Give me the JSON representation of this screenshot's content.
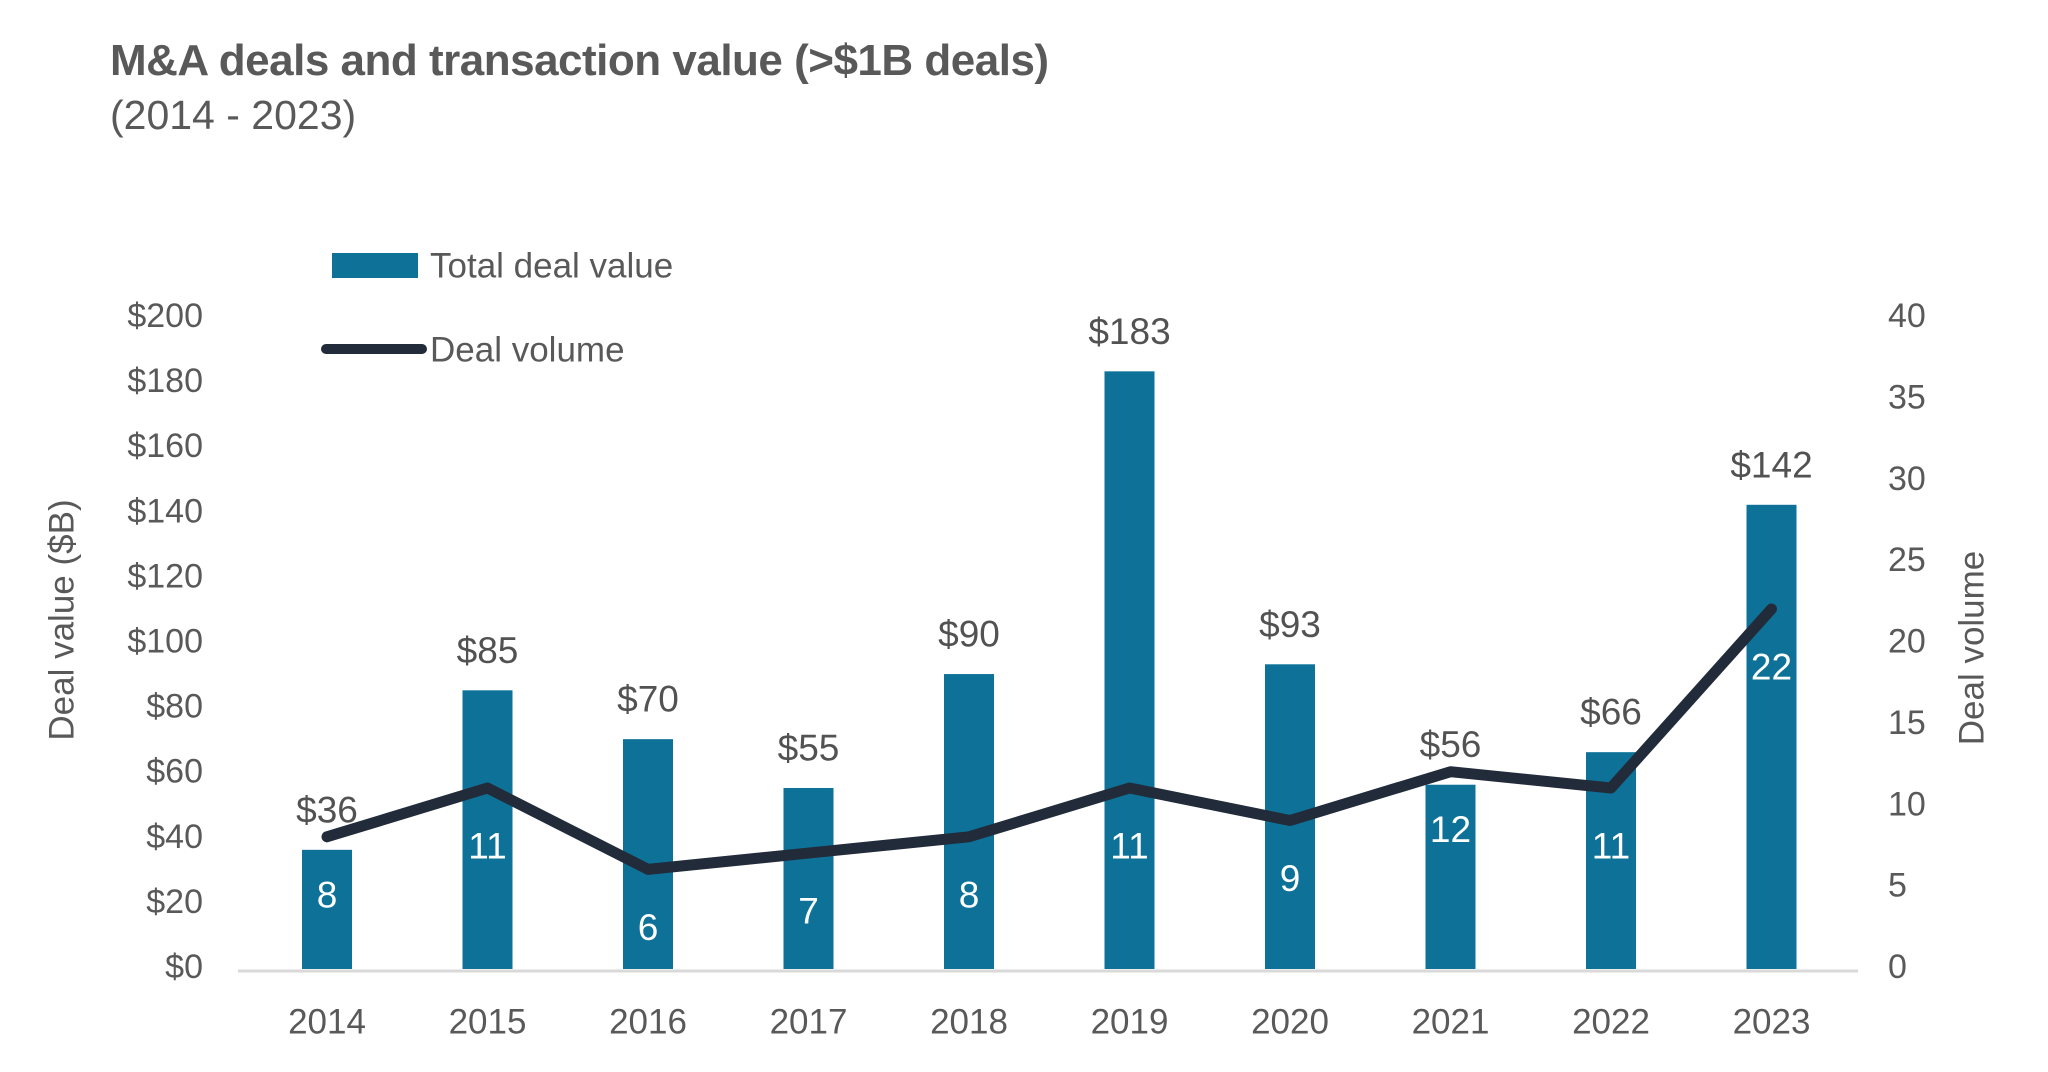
{
  "header": {
    "title": "M&A deals and transaction value (>$1B deals)",
    "subtitle": "(2014 - 2023)"
  },
  "colors": {
    "bar": "#0e7298",
    "line": "#222b3a",
    "axis_text": "#595959",
    "data_label": "#525252",
    "volume_label": "#ffffff",
    "axis_line": "#d9d9d9",
    "title_text": "#595959",
    "background": "#ffffff"
  },
  "chart_data": {
    "type": "combo bar+line",
    "categories": [
      "2014",
      "2015",
      "2016",
      "2017",
      "2018",
      "2019",
      "2020",
      "2021",
      "2022",
      "2023"
    ],
    "series": [
      {
        "name": "Total deal value",
        "type": "bar",
        "axis": "left",
        "color": "#0e7298",
        "values": [
          36,
          85,
          70,
          55,
          90,
          183,
          93,
          56,
          66,
          142
        ],
        "data_labels": [
          "$36",
          "$85",
          "$70",
          "$55",
          "$90",
          "$183",
          "$93",
          "$56",
          "$66",
          "$142"
        ],
        "label_position": "above-bar"
      },
      {
        "name": "Deal volume",
        "type": "line",
        "axis": "right",
        "color": "#222b3a",
        "values": [
          8,
          11,
          6,
          7,
          8,
          11,
          9,
          12,
          11,
          22
        ],
        "data_labels": [
          "8",
          "11",
          "6",
          "7",
          "8",
          "11",
          "9",
          "12",
          "11",
          "22"
        ],
        "label_position": "below-point",
        "label_color": "#ffffff"
      }
    ],
    "left_axis": {
      "title": "Deal value ($B)",
      "min": 0,
      "max": 200,
      "step": 20,
      "tick_labels": [
        "$0",
        "$20",
        "$40",
        "$60",
        "$80",
        "$100",
        "$120",
        "$140",
        "$160",
        "$180",
        "$200"
      ]
    },
    "right_axis": {
      "title": "Deal volume",
      "min": 0,
      "max": 40,
      "step": 5,
      "tick_labels": [
        "0",
        "5",
        "10",
        "15",
        "20",
        "25",
        "30",
        "35",
        "40"
      ]
    },
    "grid": false,
    "legend_position": "top-left",
    "legend_entries": [
      "Total deal value",
      "Deal volume"
    ]
  }
}
